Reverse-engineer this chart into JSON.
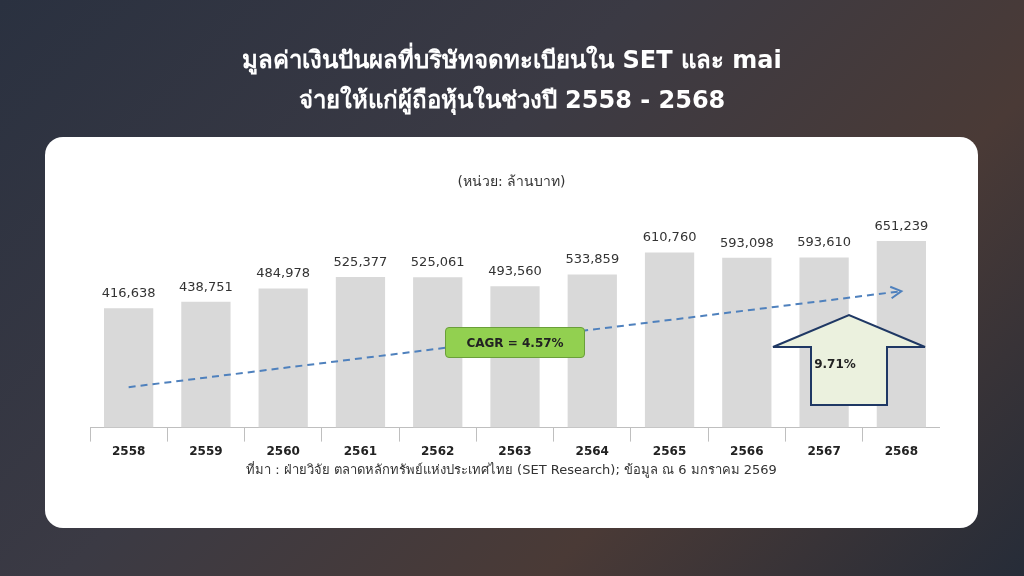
{
  "chart_data": {
    "type": "bar",
    "title": "มูลค่าเงินปันผลที่บริษัทจดทะเบียนใน SET และ mai\nจ่ายให้แก่ผู้ถือหุ้นในช่วงปี 2558 - 2568",
    "subtitle": "(หน่วย:  ล้านบาท)",
    "categories": [
      "2558",
      "2559",
      "2560",
      "2561",
      "2562",
      "2563",
      "2564",
      "2565",
      "2566",
      "2567",
      "2568"
    ],
    "series": [
      {
        "color": "#d9d9d9",
        "values": [
          416638,
          438751,
          484978,
          525377,
          525061,
          493560,
          533859,
          610760,
          593098,
          593610,
          651239
        ],
        "value_labels": [
          "416,638",
          "438,751",
          "484,978",
          "525,377",
          "525,061",
          "493,560",
          "533,859",
          "610,760",
          "593,098",
          "593,610",
          "651,239"
        ]
      },
      {
        "type": "line",
        "color": "#4f81bd",
        "line_style": "dashed",
        "values": [
          141000,
          null,
          null,
          null,
          null,
          null,
          null,
          null,
          null,
          null,
          476000
        ]
      }
    ],
    "legend": false,
    "annotations": [
      {
        "text": "CAGR = 4.57%",
        "x": "2563",
        "y": 300000
      },
      "9.71%",
      "ที่มา : ฝ่ายวิจัย ตลาดหลักทรัพย์แห่งประเทศไทย (SET Research); ข้อมูล ณ 6 มกราคม 2569"
    ]
  }
}
